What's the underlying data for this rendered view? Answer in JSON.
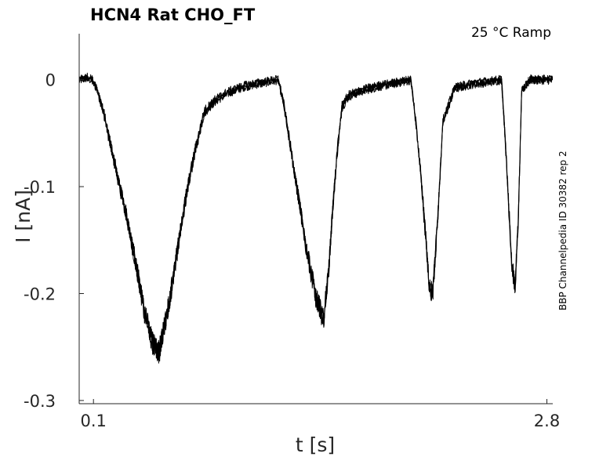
{
  "chart_data": {
    "type": "line",
    "title": "HCN4  Rat  CHO_FT",
    "annotation": "25 °C  Ramp",
    "side_label": "BBP Channelpedia ID 30382 rep 2",
    "xlabel": "t [s]",
    "ylabel": "I [nA]",
    "xlim": [
      0.015,
      2.835
    ],
    "ylim": [
      -0.303,
      0.043
    ],
    "xticks": [
      {
        "value": 0.1,
        "label": "0.1"
      },
      {
        "value": 2.8,
        "label": "2.8"
      }
    ],
    "yticks": [
      {
        "value": 0,
        "label": "0"
      },
      {
        "value": -0.1,
        "label": "-0.1"
      },
      {
        "value": -0.2,
        "label": "-0.2"
      },
      {
        "value": -0.3,
        "label": "-0.3"
      }
    ],
    "grid": false,
    "line_color": "#000000",
    "series": [
      {
        "x": [
          0.015,
          0.06,
          0.09,
          0.12,
          0.16,
          0.2,
          0.25,
          0.3,
          0.35,
          0.4,
          0.45,
          0.47,
          0.49,
          0.51,
          0.53,
          0.56,
          0.6,
          0.65,
          0.7,
          0.76,
          0.82,
          0.9,
          1.0,
          1.1,
          1.2,
          1.23,
          1.27,
          1.32,
          1.37,
          1.42,
          1.47,
          1.5,
          1.52,
          1.55,
          1.58,
          1.62,
          1.7,
          1.8,
          1.9,
          1.99,
          2.02,
          2.05,
          2.08,
          2.1,
          2.12,
          2.15,
          2.18,
          2.25,
          2.35,
          2.45,
          2.53,
          2.55,
          2.57,
          2.59,
          2.61,
          2.63,
          2.65,
          2.7,
          2.8,
          2.835
        ],
        "y": [
          0.0,
          0.002,
          0.0,
          -0.008,
          -0.03,
          -0.06,
          -0.095,
          -0.13,
          -0.17,
          -0.215,
          -0.245,
          -0.252,
          -0.255,
          -0.24,
          -0.225,
          -0.2,
          -0.16,
          -0.11,
          -0.07,
          -0.03,
          -0.02,
          -0.012,
          -0.006,
          -0.003,
          0.0,
          -0.02,
          -0.06,
          -0.11,
          -0.16,
          -0.2,
          -0.225,
          -0.18,
          -0.13,
          -0.07,
          -0.025,
          -0.015,
          -0.01,
          -0.006,
          -0.003,
          0.0,
          -0.04,
          -0.09,
          -0.15,
          -0.195,
          -0.2,
          -0.13,
          -0.04,
          -0.008,
          -0.004,
          -0.002,
          0.0,
          -0.05,
          -0.11,
          -0.17,
          -0.195,
          -0.13,
          -0.01,
          0.0,
          0.0,
          0.0
        ]
      }
    ]
  }
}
